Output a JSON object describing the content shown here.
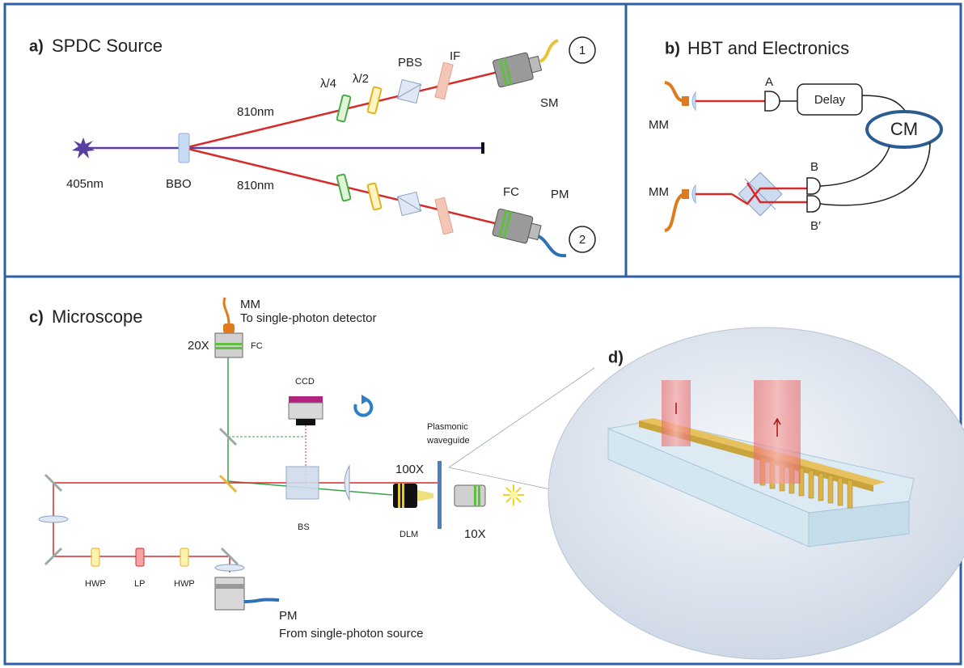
{
  "panels": {
    "a": {
      "label": "a)",
      "title": "SPDC Source",
      "labels": [
        "λ/4",
        "λ/2",
        "PBS",
        "IF",
        "SM",
        "1",
        "810nm",
        "810nm",
        "405nm",
        "BBO",
        "FC",
        "PM",
        "2"
      ]
    },
    "b": {
      "label": "b)",
      "title": "HBT and Electronics",
      "labels": [
        "A",
        "Delay",
        "MM",
        "CM",
        "B",
        "MM",
        "B′"
      ]
    },
    "c": {
      "label": "c)",
      "title": "Microscope",
      "labels": [
        "MM",
        "To single-photon detector",
        "20X",
        "FC",
        "CCD",
        "Plasmonic",
        "waveguide",
        "100X",
        "BS",
        "DLM",
        "10X",
        "HWP",
        "LP",
        "HWP",
        "PM",
        "From single-photon source"
      ]
    },
    "d": {
      "label": "d)"
    }
  }
}
